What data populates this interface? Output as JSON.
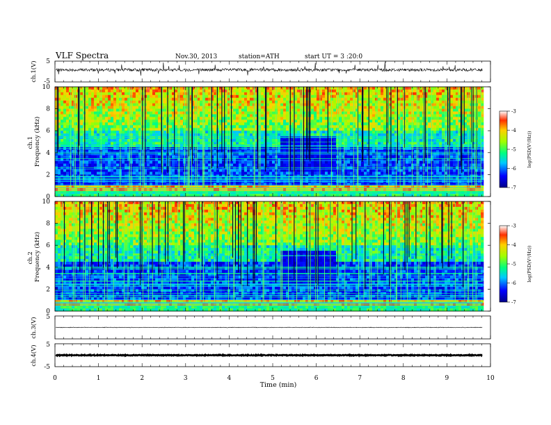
{
  "header": {
    "title": "VLF Spectra",
    "date": "Nov.30, 2013",
    "station": "station=ATH",
    "start": "start UT =  3 :20:0"
  },
  "x_axis": {
    "label": "Time (min)",
    "range": [
      0,
      10
    ],
    "ticks": [
      "0",
      "1",
      "2",
      "3",
      "4",
      "5",
      "6",
      "7",
      "8",
      "9",
      "10"
    ]
  },
  "chart_data": [
    {
      "type": "line",
      "id": "ch1-waveform",
      "ylabel": "ch.1(V)",
      "ylim": [
        -5,
        5
      ],
      "yticks": [
        "5",
        "-5"
      ],
      "description_series": "noisy waveform oscillating near +0.8 V with spikes",
      "baseline": 0.8,
      "x_range": [
        0,
        9.82
      ]
    },
    {
      "type": "heatmap",
      "id": "ch1-spectrogram",
      "ylabel": "ch.1\nFrequency (kHz)",
      "ylim": [
        0,
        10
      ],
      "yticks": [
        "0",
        "2",
        "4",
        "6",
        "8",
        "10"
      ],
      "x_range": [
        0,
        9.82
      ],
      "colorbar": {
        "label": "log(PSD(V²/Hz))",
        "range": [
          -7,
          -3
        ],
        "ticks": [
          "-3",
          "-4",
          "-5",
          "-6",
          "-7"
        ]
      },
      "quiet_interval_min": [
        5.15,
        6.45
      ]
    },
    {
      "type": "heatmap",
      "id": "ch2-spectrogram",
      "ylabel": "ch.2\nFrequency (kHz)",
      "ylim": [
        0,
        10
      ],
      "yticks": [
        "0",
        "2",
        "4",
        "6",
        "8",
        "10"
      ],
      "x_range": [
        0,
        9.82
      ],
      "colorbar": {
        "label": "log(PSD(V²/Hz))",
        "range": [
          -7,
          -3
        ],
        "ticks": [
          "-3",
          "-4",
          "-5",
          "-6",
          "-7"
        ]
      },
      "quiet_interval_min": [
        5.15,
        6.45
      ]
    },
    {
      "type": "line",
      "id": "ch3-waveform",
      "ylabel": "ch.3(V)",
      "ylim": [
        -5,
        5
      ],
      "yticks": [
        "5"
      ],
      "baseline": 0.0,
      "x_range": [
        0,
        9.82
      ]
    },
    {
      "type": "line",
      "id": "ch4-waveform",
      "ylabel": "ch.4(V)",
      "ylim": [
        -5,
        5
      ],
      "yticks": [
        "5",
        "-5"
      ],
      "baseline": 0.0,
      "x_range": [
        0,
        9.82
      ]
    }
  ]
}
